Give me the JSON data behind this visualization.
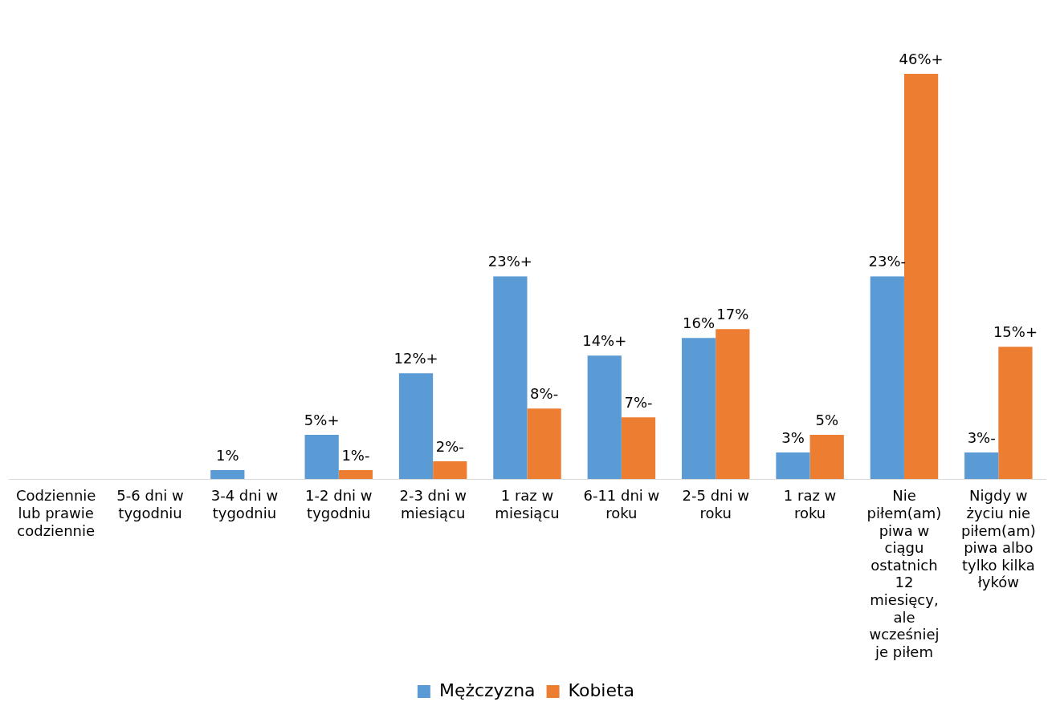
{
  "chart_data": {
    "type": "bar",
    "categories": [
      "Codziennie lub prawie codziennie",
      "5-6 dni w tygodniu",
      "3-4 dni w tygodniu",
      "1-2 dni w tygodniu",
      "2-3 dni w miesiącu",
      "1 raz w miesiącu",
      "6-11 dni w roku",
      "2-5 dni w roku",
      "1 raz w roku",
      "Nie piłem(am) piwa w ciągu ostatnich 12 miesięcy, ale wcześniej je piłem",
      "Nigdy w życiu nie piłem(am) piwa albo tylko kilka łyków"
    ],
    "series": [
      {
        "name": "Mężczyzna",
        "color": "#5b9bd5",
        "values": [
          null,
          null,
          1,
          5,
          12,
          23,
          14,
          16,
          3,
          23,
          3
        ],
        "value_labels": [
          null,
          null,
          "1%",
          "5%+",
          "12%+",
          "23%+",
          "14%+",
          "16%",
          "3%",
          "23%-",
          "3%-"
        ]
      },
      {
        "name": "Kobieta",
        "color": "#ed7d31",
        "values": [
          null,
          null,
          null,
          1,
          2,
          8,
          7,
          17,
          5,
          46,
          15
        ],
        "value_labels": [
          null,
          null,
          null,
          "1%-",
          "2%-",
          "8%-",
          "7%-",
          "17%",
          "5%",
          "46%+",
          "15%+"
        ]
      }
    ],
    "legend": "bottom",
    "grid": false
  }
}
